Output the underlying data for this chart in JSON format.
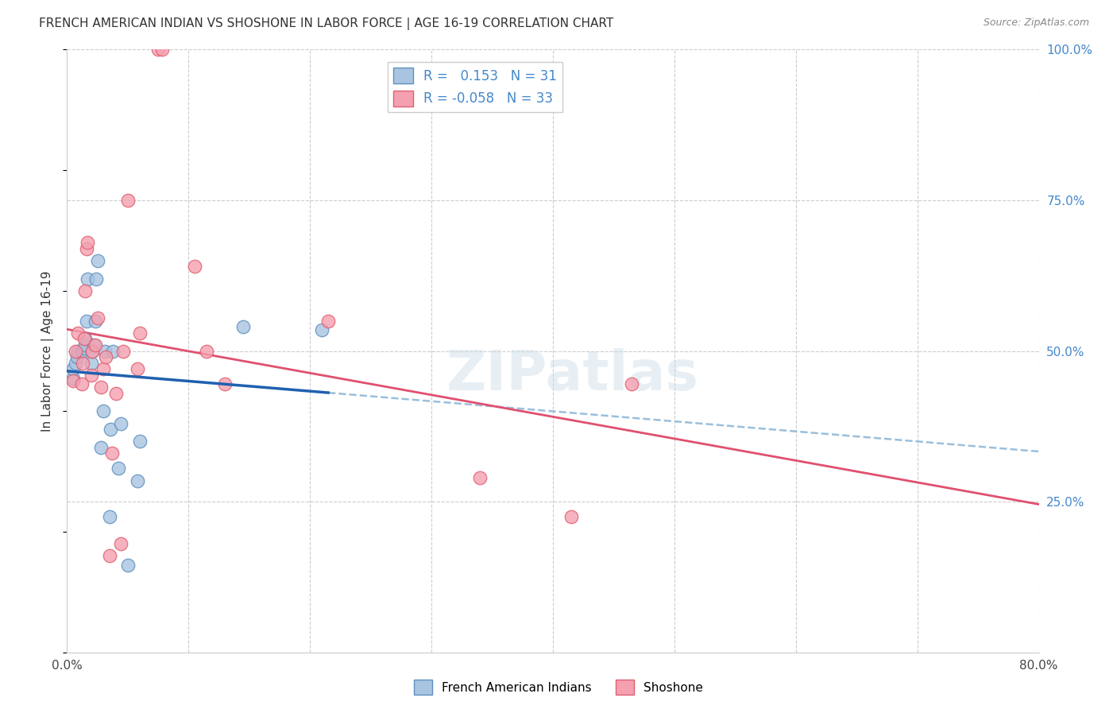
{
  "title": "FRENCH AMERICAN INDIAN VS SHOSHONE IN LABOR FORCE | AGE 16-19 CORRELATION CHART",
  "source": "Source: ZipAtlas.com",
  "ylabel": "In Labor Force | Age 16-19",
  "x_min": 0.0,
  "x_max": 0.8,
  "y_min": 0.0,
  "y_max": 1.0,
  "x_ticks": [
    0.0,
    0.1,
    0.2,
    0.3,
    0.4,
    0.5,
    0.6,
    0.7,
    0.8
  ],
  "x_tick_labels": [
    "0.0%",
    "",
    "",
    "",
    "",
    "",
    "",
    "",
    "80.0%"
  ],
  "y_ticks": [
    0.25,
    0.5,
    0.75,
    1.0
  ],
  "y_tick_labels": [
    "25.0%",
    "50.0%",
    "75.0%",
    "100.0%"
  ],
  "french_R": 0.153,
  "french_N": 31,
  "shoshone_R": -0.058,
  "shoshone_N": 33,
  "french_color": "#a8c4e0",
  "shoshone_color": "#f4a0b0",
  "french_edge_color": "#6090c0",
  "shoshone_edge_color": "#e06070",
  "trend_french_color": "#2060b0",
  "trend_shoshone_color": "#e05070",
  "trend_ext_color": "#90b8d8",
  "watermark": "ZIPatlas",
  "french_x": [
    0.005,
    0.005,
    0.007,
    0.008,
    0.009,
    0.012,
    0.013,
    0.014,
    0.015,
    0.015,
    0.016,
    0.017,
    0.02,
    0.021,
    0.022,
    0.023,
    0.024,
    0.025,
    0.028,
    0.03,
    0.031,
    0.035,
    0.036,
    0.038,
    0.042,
    0.044,
    0.05,
    0.058,
    0.06,
    0.145,
    0.21
  ],
  "french_y": [
    0.455,
    0.47,
    0.48,
    0.49,
    0.5,
    0.5,
    0.5,
    0.505,
    0.51,
    0.52,
    0.55,
    0.62,
    0.48,
    0.5,
    0.51,
    0.55,
    0.62,
    0.65,
    0.34,
    0.4,
    0.5,
    0.225,
    0.37,
    0.5,
    0.305,
    0.38,
    0.145,
    0.285,
    0.35,
    0.54,
    0.535
  ],
  "shoshone_x": [
    0.005,
    0.007,
    0.009,
    0.012,
    0.013,
    0.014,
    0.015,
    0.016,
    0.017,
    0.02,
    0.021,
    0.023,
    0.025,
    0.028,
    0.03,
    0.032,
    0.035,
    0.037,
    0.04,
    0.044,
    0.046,
    0.05,
    0.058,
    0.06,
    0.075,
    0.078,
    0.105,
    0.115,
    0.13,
    0.215,
    0.34,
    0.415,
    0.465
  ],
  "shoshone_y": [
    0.45,
    0.5,
    0.53,
    0.445,
    0.48,
    0.52,
    0.6,
    0.67,
    0.68,
    0.46,
    0.5,
    0.51,
    0.555,
    0.44,
    0.47,
    0.49,
    0.16,
    0.33,
    0.43,
    0.18,
    0.5,
    0.75,
    0.47,
    0.53,
    1.0,
    1.0,
    0.64,
    0.5,
    0.445,
    0.55,
    0.29,
    0.225,
    0.445
  ]
}
